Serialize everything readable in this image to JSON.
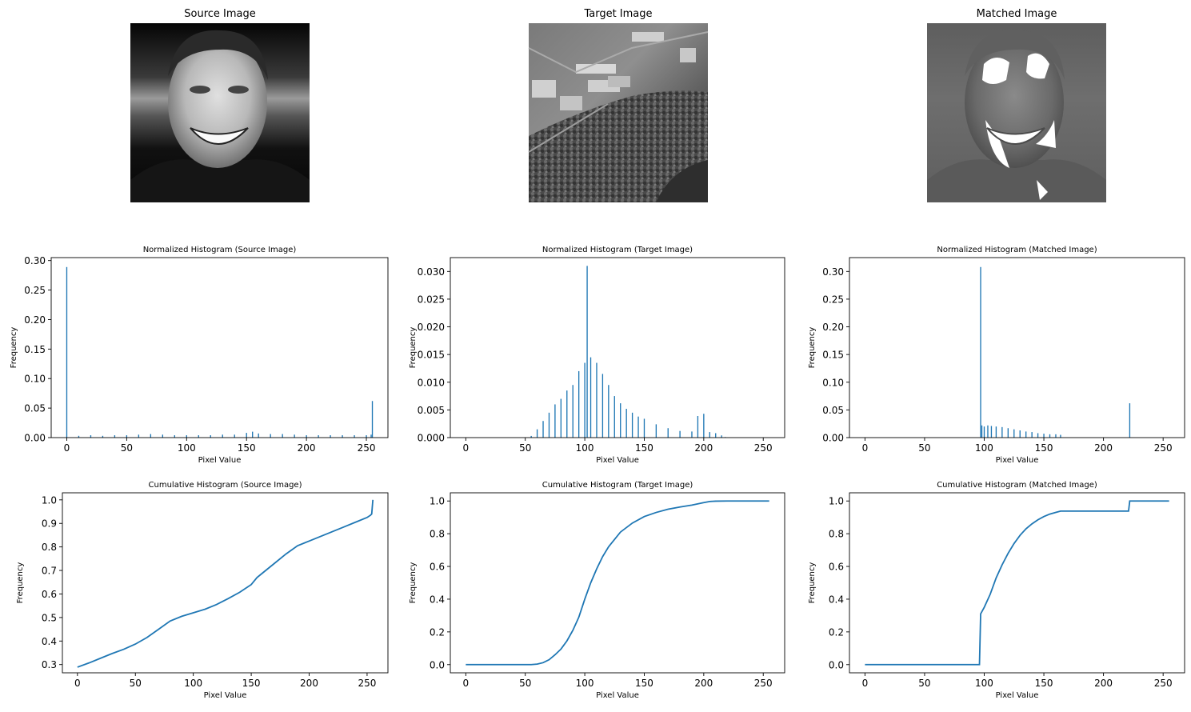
{
  "images": [
    {
      "title": "Source Image"
    },
    {
      "title": "Target Image"
    },
    {
      "title": "Matched Image"
    }
  ],
  "colors": {
    "series": "#1f77b4",
    "axis": "#000000"
  },
  "chart_data": [
    {
      "type": "bar",
      "title": "Normalized Histogram (Source Image)",
      "xlabel": "Pixel Value",
      "ylabel": "Frequency",
      "xlim": [
        -13,
        268
      ],
      "ylim": [
        0,
        0.305
      ],
      "xticks": [
        0,
        50,
        100,
        150,
        200,
        250
      ],
      "xtick_labels": [
        "0",
        "50",
        "100",
        "150",
        "200",
        "250"
      ],
      "yticks": [
        0,
        0.05,
        0.1,
        0.15,
        0.2,
        0.25,
        0.3
      ],
      "ytick_labels": [
        "0.00",
        "0.05",
        "0.10",
        "0.15",
        "0.20",
        "0.25",
        "0.30"
      ],
      "x": [
        0,
        10,
        20,
        30,
        40,
        50,
        60,
        70,
        80,
        90,
        100,
        110,
        120,
        130,
        140,
        150,
        155,
        160,
        170,
        180,
        190,
        200,
        210,
        220,
        230,
        240,
        250,
        254,
        255
      ],
      "values": [
        0.289,
        0.003,
        0.004,
        0.003,
        0.004,
        0.004,
        0.005,
        0.006,
        0.005,
        0.004,
        0.004,
        0.004,
        0.004,
        0.005,
        0.005,
        0.008,
        0.01,
        0.007,
        0.006,
        0.006,
        0.005,
        0.004,
        0.004,
        0.004,
        0.004,
        0.004,
        0.004,
        0.005,
        0.062
      ]
    },
    {
      "type": "bar",
      "title": "Normalized Histogram (Target Image)",
      "xlabel": "Pixel Value",
      "ylabel": "Frequency",
      "xlim": [
        -13,
        268
      ],
      "ylim": [
        0,
        0.0325
      ],
      "xticks": [
        0,
        50,
        100,
        150,
        200,
        250
      ],
      "xtick_labels": [
        "0",
        "50",
        "100",
        "150",
        "200",
        "250"
      ],
      "yticks": [
        0,
        0.005,
        0.01,
        0.015,
        0.02,
        0.025,
        0.03
      ],
      "ytick_labels": [
        "0.000",
        "0.005",
        "0.010",
        "0.015",
        "0.020",
        "0.025",
        "0.030"
      ],
      "x": [
        55,
        60,
        65,
        70,
        75,
        80,
        85,
        90,
        95,
        100,
        102,
        105,
        110,
        115,
        120,
        125,
        130,
        135,
        140,
        145,
        150,
        160,
        170,
        180,
        190,
        195,
        200,
        205,
        210,
        215,
        218
      ],
      "values": [
        0.0003,
        0.0015,
        0.003,
        0.0045,
        0.006,
        0.007,
        0.0085,
        0.0095,
        0.012,
        0.0135,
        0.031,
        0.0145,
        0.0135,
        0.0115,
        0.0095,
        0.0075,
        0.0062,
        0.0052,
        0.0045,
        0.0038,
        0.0034,
        0.0024,
        0.0017,
        0.0012,
        0.0011,
        0.0039,
        0.0043,
        0.001,
        0.0008,
        0.0004,
        0.0001
      ]
    },
    {
      "type": "bar",
      "title": "Normalized Histogram (Matched Image)",
      "xlabel": "Pixel Value",
      "ylabel": "Frequency",
      "xlim": [
        -13,
        268
      ],
      "ylim": [
        0,
        0.325
      ],
      "xticks": [
        0,
        50,
        100,
        150,
        200,
        250
      ],
      "xtick_labels": [
        "0",
        "50",
        "100",
        "150",
        "200",
        "250"
      ],
      "yticks": [
        0,
        0.05,
        0.1,
        0.15,
        0.2,
        0.25,
        0.3
      ],
      "ytick_labels": [
        "0.00",
        "0.05",
        "0.10",
        "0.15",
        "0.20",
        "0.25",
        "0.30"
      ],
      "x": [
        97,
        98,
        100,
        103,
        106,
        110,
        115,
        120,
        125,
        130,
        135,
        140,
        145,
        150,
        155,
        160,
        164,
        222
      ],
      "values": [
        0.308,
        0.022,
        0.02,
        0.022,
        0.021,
        0.02,
        0.019,
        0.017,
        0.015,
        0.013,
        0.011,
        0.01,
        0.008,
        0.007,
        0.006,
        0.006,
        0.005,
        0.062
      ]
    },
    {
      "type": "line",
      "title": "Cumulative Histogram (Source Image)",
      "xlabel": "Pixel Value",
      "ylabel": "Frequency",
      "xlim": [
        -13,
        268
      ],
      "ylim": [
        0.265,
        1.03
      ],
      "xticks": [
        0,
        50,
        100,
        150,
        200,
        250
      ],
      "xtick_labels": [
        "0",
        "50",
        "100",
        "150",
        "200",
        "250"
      ],
      "yticks": [
        0.3,
        0.4,
        0.5,
        0.6,
        0.7,
        0.8,
        0.9,
        1.0
      ],
      "ytick_labels": [
        "0.3",
        "0.4",
        "0.5",
        "0.6",
        "0.7",
        "0.8",
        "0.9",
        "1.0"
      ],
      "x": [
        0,
        10,
        20,
        30,
        40,
        50,
        60,
        70,
        80,
        90,
        100,
        110,
        120,
        130,
        140,
        150,
        155,
        160,
        170,
        180,
        190,
        200,
        210,
        220,
        230,
        240,
        250,
        253,
        254,
        255
      ],
      "y": [
        0.289,
        0.307,
        0.327,
        0.347,
        0.365,
        0.387,
        0.415,
        0.45,
        0.485,
        0.505,
        0.52,
        0.535,
        0.555,
        0.58,
        0.607,
        0.64,
        0.67,
        0.69,
        0.73,
        0.77,
        0.805,
        0.825,
        0.845,
        0.865,
        0.885,
        0.905,
        0.925,
        0.935,
        0.94,
        1.0
      ]
    },
    {
      "type": "line",
      "title": "Cumulative Histogram (Target Image)",
      "xlabel": "Pixel Value",
      "ylabel": "Frequency",
      "xlim": [
        -13,
        268
      ],
      "ylim": [
        -0.05,
        1.05
      ],
      "xticks": [
        0,
        50,
        100,
        150,
        200,
        250
      ],
      "xtick_labels": [
        "0",
        "50",
        "100",
        "150",
        "200",
        "250"
      ],
      "yticks": [
        0,
        0.2,
        0.4,
        0.6,
        0.8,
        1.0
      ],
      "ytick_labels": [
        "0.0",
        "0.2",
        "0.4",
        "0.6",
        "0.8",
        "1.0"
      ],
      "x": [
        0,
        55,
        60,
        65,
        70,
        75,
        80,
        85,
        90,
        95,
        100,
        105,
        110,
        115,
        120,
        125,
        130,
        140,
        150,
        160,
        170,
        180,
        190,
        200,
        205,
        210,
        220,
        255
      ],
      "y": [
        0,
        0,
        0.003,
        0.012,
        0.03,
        0.06,
        0.095,
        0.145,
        0.21,
        0.29,
        0.4,
        0.5,
        0.585,
        0.66,
        0.72,
        0.765,
        0.81,
        0.865,
        0.905,
        0.93,
        0.95,
        0.963,
        0.975,
        0.99,
        0.997,
        0.999,
        1.0,
        1.0
      ]
    },
    {
      "type": "line",
      "title": "Cumulative Histogram (Matched Image)",
      "xlabel": "Pixel Value",
      "ylabel": "Frequency",
      "xlim": [
        -13,
        268
      ],
      "ylim": [
        -0.05,
        1.05
      ],
      "xticks": [
        0,
        50,
        100,
        150,
        200,
        250
      ],
      "xtick_labels": [
        "0",
        "50",
        "100",
        "150",
        "200",
        "250"
      ],
      "yticks": [
        0,
        0.2,
        0.4,
        0.6,
        0.8,
        1.0
      ],
      "ytick_labels": [
        "0.0",
        "0.2",
        "0.4",
        "0.6",
        "0.8",
        "1.0"
      ],
      "x": [
        0,
        96,
        97,
        100,
        105,
        110,
        115,
        120,
        125,
        130,
        135,
        140,
        145,
        150,
        155,
        160,
        164,
        221,
        222,
        255
      ],
      "y": [
        0,
        0,
        0.31,
        0.35,
        0.43,
        0.53,
        0.61,
        0.68,
        0.74,
        0.79,
        0.83,
        0.86,
        0.885,
        0.905,
        0.92,
        0.93,
        0.938,
        0.938,
        1.0,
        1.0
      ]
    }
  ]
}
